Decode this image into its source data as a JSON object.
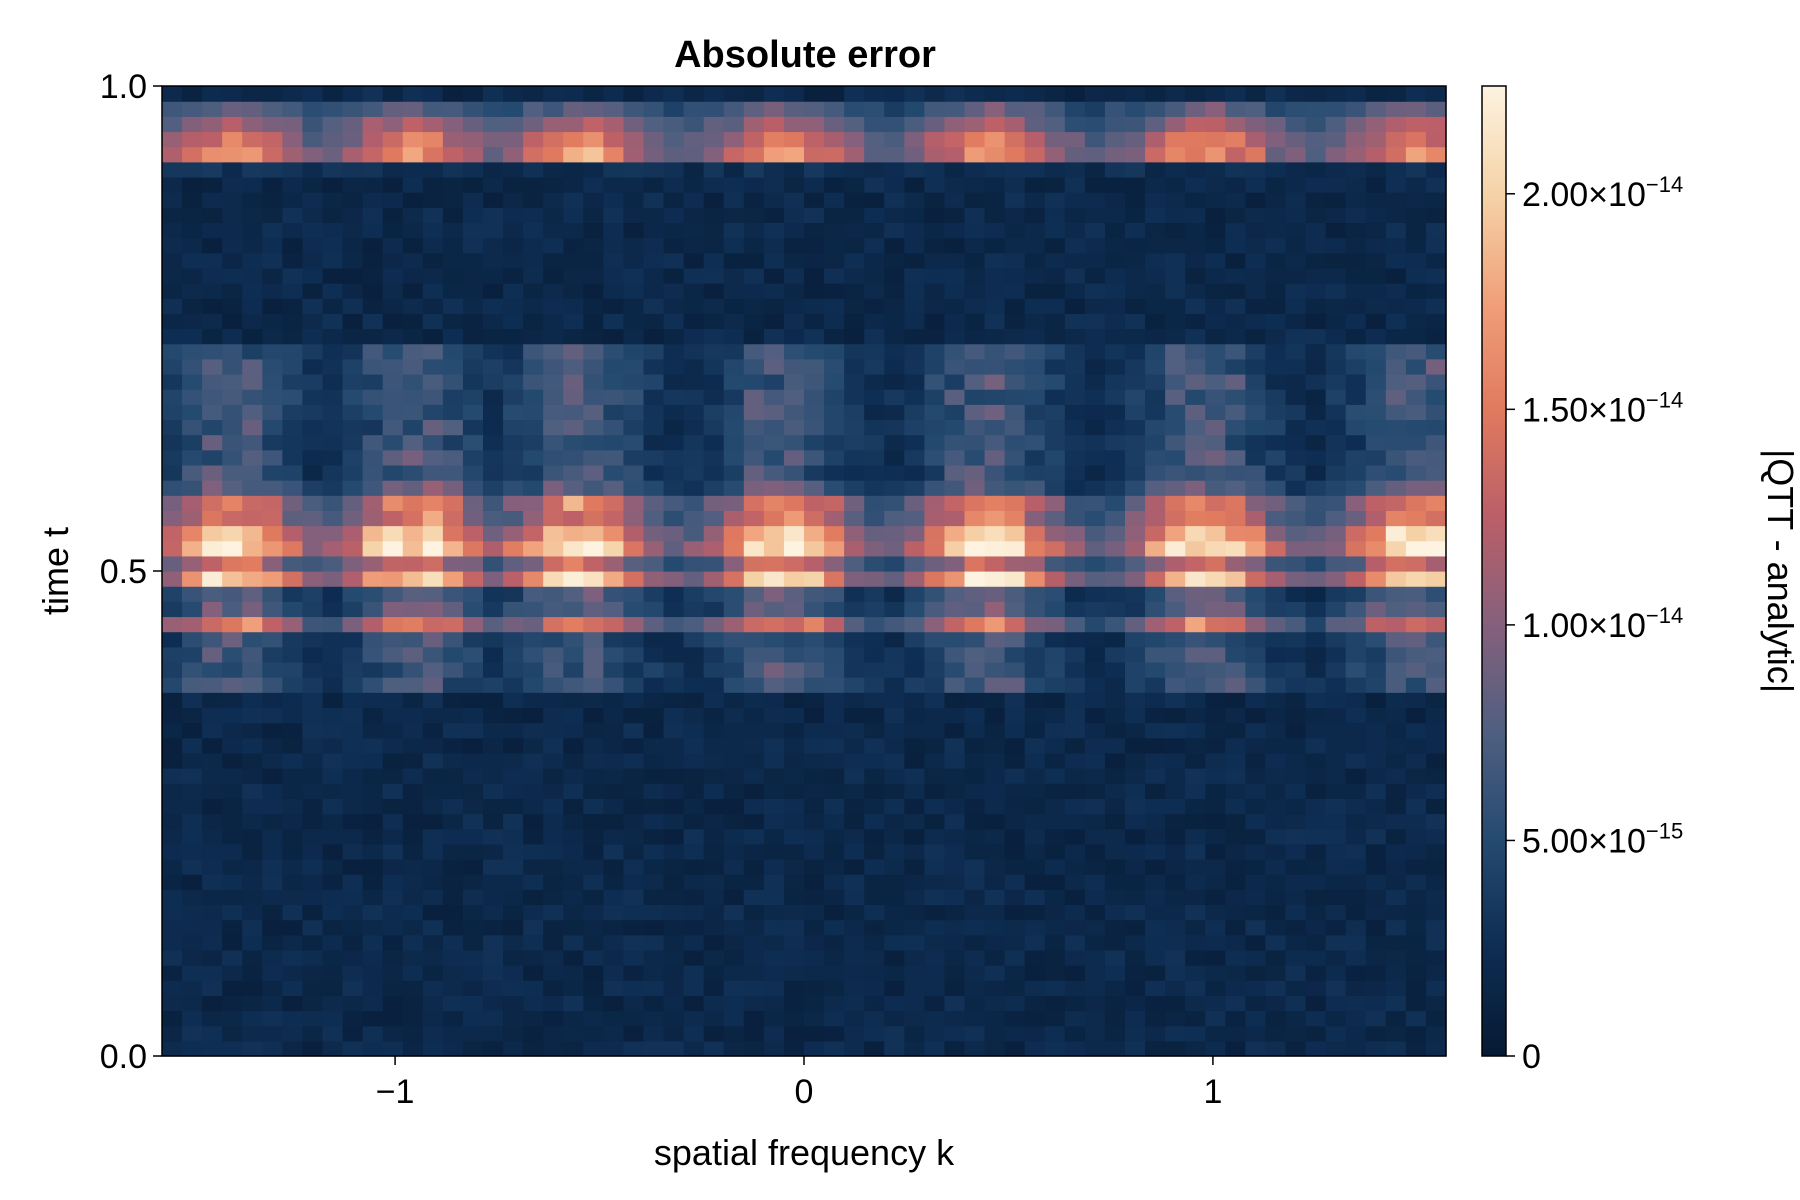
{
  "chart_data": {
    "type": "heatmap",
    "title": "Absolute error",
    "xlabel": "spatial frequency k",
    "ylabel": "time t",
    "xlim": [
      -1.57,
      1.57
    ],
    "ylim": [
      0.0,
      1.0
    ],
    "x_ticks": [
      -1,
      0,
      1
    ],
    "x_tick_labels": [
      "−1",
      "0",
      "1"
    ],
    "y_ticks": [
      0.0,
      0.5,
      1.0
    ],
    "y_tick_labels": [
      "0.0",
      "0.5",
      "1.0"
    ],
    "colorbar": {
      "label": "|QTT - analytic|",
      "min": 0,
      "max": 2.25e-14,
      "ticks": [
        0,
        5e-15,
        1e-14,
        1.5e-14,
        2e-14
      ],
      "tick_labels": [
        {
          "base": "0",
          "exp": ""
        },
        {
          "base": "5.00×10",
          "exp": "−15"
        },
        {
          "base": "1.00×10",
          "exp": "−14"
        },
        {
          "base": "1.50×10",
          "exp": "−14"
        },
        {
          "base": "2.00×10",
          "exp": "−14"
        }
      ],
      "colormap": [
        "#061a33",
        "#0e2d52",
        "#254a70",
        "#4f5f80",
        "#85607c",
        "#bb5f68",
        "#e07a5f",
        "#f0a07a",
        "#f5d3a8",
        "#fdf3e0"
      ]
    },
    "grid": {
      "nx": 64,
      "ny": 64,
      "x_range": [
        -1.57,
        1.57
      ],
      "y_range": [
        0.0,
        1.0
      ]
    },
    "bands": [
      {
        "t": 0.935,
        "width": 0.012,
        "amp": 1.95e-14
      },
      {
        "t": 0.955,
        "width": 0.01,
        "amp": 1.3e-14
      },
      {
        "t": 0.972,
        "width": 0.008,
        "amp": 1e-14
      },
      {
        "t": 0.545,
        "width": 0.012,
        "amp": 1.7e-14
      },
      {
        "t": 0.52,
        "width": 0.01,
        "amp": 1.8e-14
      },
      {
        "t": 0.495,
        "width": 0.01,
        "amp": 1.6e-14
      },
      {
        "t": 0.575,
        "width": 0.008,
        "amp": 1.3e-14
      },
      {
        "t": 0.45,
        "width": 0.008,
        "amp": 1.25e-14
      }
    ],
    "lobe_centers_k": [
      -1.4,
      -0.95,
      -0.55,
      -0.05,
      0.45,
      0.98,
      1.5
    ],
    "lobe_width_k": 0.16,
    "mid_region": {
      "t_low": 0.38,
      "t_high": 0.74,
      "amp": 6.5e-15
    },
    "noise_floor": 2.2e-15
  }
}
